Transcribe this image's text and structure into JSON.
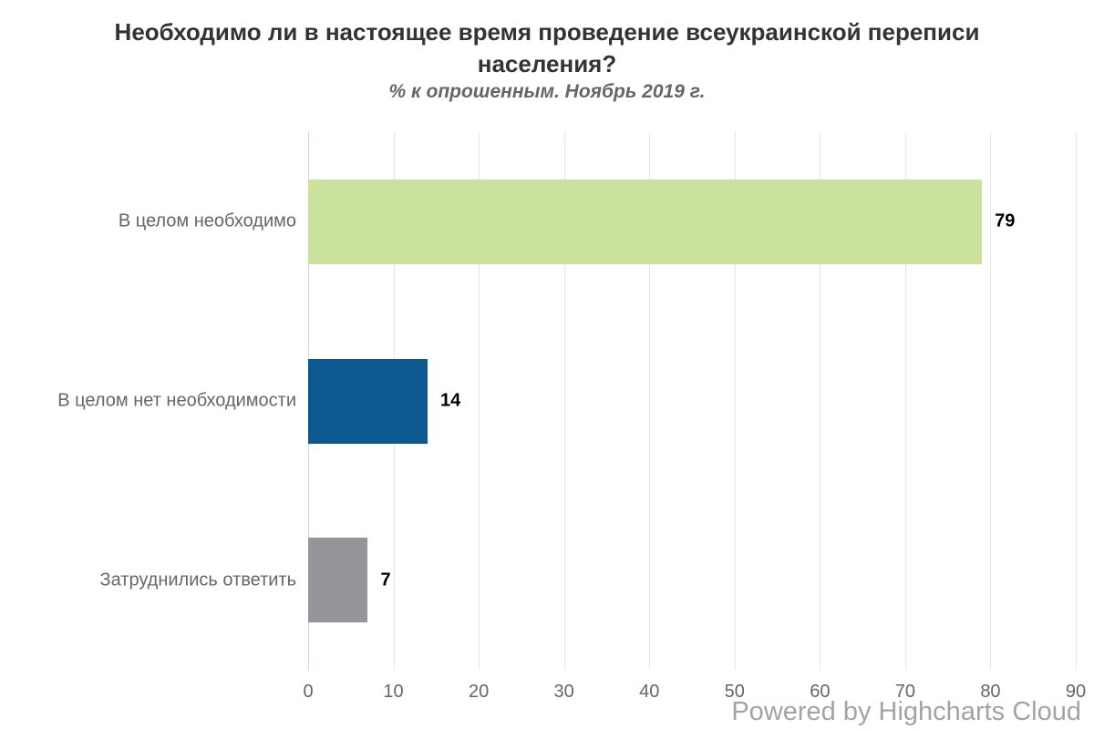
{
  "chart_data": {
    "type": "bar",
    "orientation": "horizontal",
    "title": "Необходимо ли в настоящее время проведение всеукраинской переписи населения?",
    "subtitle": "% к опрошенным. Ноябрь 2019 г.",
    "categories": [
      "В целом необходимо",
      "В целом нет необходимости",
      "Затруднились ответить"
    ],
    "values": [
      79,
      14,
      7
    ],
    "data_labels": [
      "79",
      "14",
      "7"
    ],
    "bar_colors": [
      "#cbe29d",
      "#0d588f",
      "#95959a"
    ],
    "xlim": [
      0,
      90
    ],
    "x_ticks": [
      0,
      10,
      20,
      30,
      40,
      50,
      60,
      70,
      80,
      90
    ],
    "xlabel": "",
    "ylabel": "",
    "grid": true,
    "legend": false
  },
  "colors": {
    "title": "#333333",
    "subtitle": "#666666",
    "axis_labels": "#666666",
    "data_label": "#000000",
    "gridline": "#e6e6e6",
    "axis_line": "#ccd6eb",
    "watermark": "#a3a3a3",
    "background": "#ffffff"
  },
  "watermark": "Powered by Highcharts Cloud"
}
